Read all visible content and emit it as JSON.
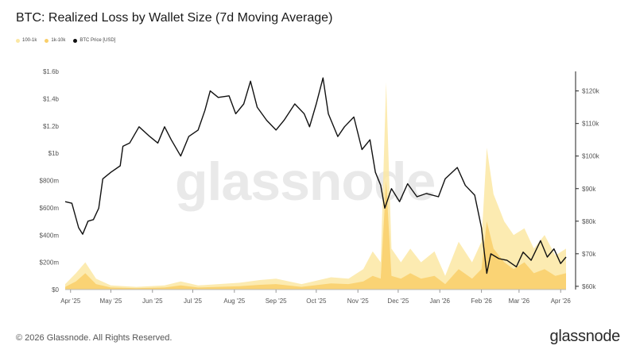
{
  "header": {
    "title": "BTC: Realized Loss by Wallet Size (7d Moving Average)"
  },
  "watermark": "glassnode",
  "footer": {
    "copyright": "© 2026 Glassnode. All Rights Reserved.",
    "logo": "glassnode"
  },
  "colors": {
    "series_100_1k": "#fbe7a3",
    "series_1k_10k": "#f9cf6a",
    "price": "#111111"
  },
  "chart_data": {
    "type": "area",
    "title": "BTC: Realized Loss by Wallet Size (7d Moving Average)",
    "legend": {
      "placement": "top-left",
      "entries": [
        "100-1k",
        "1k-10k",
        "BTC Price [USD]"
      ]
    },
    "x_axis": {
      "ticks": [
        "Apr '25",
        "May '25",
        "Jun '25",
        "Jul '25",
        "Aug '25",
        "Sep '25",
        "Oct '25",
        "Nov '25",
        "Dec '25",
        "Jan '26",
        "Feb '26",
        "Mar '26",
        "Apr '26"
      ],
      "range": [
        "2025-03-28",
        "2026-04-05"
      ]
    },
    "y_left": {
      "ticks": [
        "$0",
        "$200m",
        "$400m",
        "$600m",
        "$800m",
        "$1b",
        "$1.2b",
        "$1.4b",
        "$1.6b"
      ],
      "range": [
        0,
        1600
      ]
    },
    "y_right": {
      "ticks": [
        "$60k",
        "$70k",
        "$80k",
        "$90k",
        "$100k",
        "$110k",
        "$120k"
      ],
      "range": [
        59000,
        126000
      ]
    },
    "grid": false,
    "series": [
      {
        "name": "100-1k",
        "axis": "left",
        "unit": "USD millions",
        "points": [
          [
            "2025-03-28",
            40
          ],
          [
            "2025-04-05",
            120
          ],
          [
            "2025-04-12",
            200
          ],
          [
            "2025-04-20",
            80
          ],
          [
            "2025-05-01",
            30
          ],
          [
            "2025-05-20",
            20
          ],
          [
            "2025-06-10",
            30
          ],
          [
            "2025-06-22",
            60
          ],
          [
            "2025-07-05",
            30
          ],
          [
            "2025-08-05",
            50
          ],
          [
            "2025-08-20",
            70
          ],
          [
            "2025-09-01",
            80
          ],
          [
            "2025-09-20",
            40
          ],
          [
            "2025-10-12",
            90
          ],
          [
            "2025-10-25",
            80
          ],
          [
            "2025-11-05",
            150
          ],
          [
            "2025-11-12",
            280
          ],
          [
            "2025-11-18",
            200
          ],
          [
            "2025-11-22",
            1520
          ],
          [
            "2025-11-26",
            300
          ],
          [
            "2025-12-03",
            200
          ],
          [
            "2025-12-10",
            300
          ],
          [
            "2025-12-18",
            200
          ],
          [
            "2025-12-28",
            280
          ],
          [
            "2026-01-05",
            100
          ],
          [
            "2026-01-15",
            350
          ],
          [
            "2026-01-25",
            200
          ],
          [
            "2026-02-01",
            350
          ],
          [
            "2026-02-05",
            1040
          ],
          [
            "2026-02-10",
            700
          ],
          [
            "2026-02-18",
            500
          ],
          [
            "2026-02-25",
            400
          ],
          [
            "2026-03-05",
            450
          ],
          [
            "2026-03-12",
            300
          ],
          [
            "2026-03-20",
            400
          ],
          [
            "2026-03-28",
            250
          ],
          [
            "2026-04-05",
            300
          ]
        ]
      },
      {
        "name": "1k-10k",
        "axis": "left",
        "unit": "USD millions",
        "points": [
          [
            "2025-03-28",
            20
          ],
          [
            "2025-04-05",
            60
          ],
          [
            "2025-04-12",
            120
          ],
          [
            "2025-04-20",
            40
          ],
          [
            "2025-05-01",
            15
          ],
          [
            "2025-05-20",
            10
          ],
          [
            "2025-06-10",
            15
          ],
          [
            "2025-06-22",
            30
          ],
          [
            "2025-07-05",
            15
          ],
          [
            "2025-08-05",
            25
          ],
          [
            "2025-08-20",
            35
          ],
          [
            "2025-09-01",
            40
          ],
          [
            "2025-09-20",
            20
          ],
          [
            "2025-10-12",
            45
          ],
          [
            "2025-10-25",
            40
          ],
          [
            "2025-11-05",
            60
          ],
          [
            "2025-11-12",
            100
          ],
          [
            "2025-11-18",
            80
          ],
          [
            "2025-11-22",
            800
          ],
          [
            "2025-11-26",
            100
          ],
          [
            "2025-12-03",
            80
          ],
          [
            "2025-12-10",
            120
          ],
          [
            "2025-12-18",
            80
          ],
          [
            "2025-12-28",
            100
          ],
          [
            "2026-01-05",
            40
          ],
          [
            "2026-01-15",
            150
          ],
          [
            "2026-01-25",
            80
          ],
          [
            "2026-02-01",
            150
          ],
          [
            "2026-02-05",
            500
          ],
          [
            "2026-02-10",
            300
          ],
          [
            "2026-02-18",
            200
          ],
          [
            "2026-02-25",
            150
          ],
          [
            "2026-03-05",
            200
          ],
          [
            "2026-03-12",
            120
          ],
          [
            "2026-03-20",
            150
          ],
          [
            "2026-03-28",
            100
          ],
          [
            "2026-04-05",
            120
          ]
        ]
      },
      {
        "name": "BTC Price [USD]",
        "axis": "right",
        "unit": "USD",
        "points": [
          [
            "2025-03-28",
            86000
          ],
          [
            "2025-04-02",
            85500
          ],
          [
            "2025-04-07",
            78000
          ],
          [
            "2025-04-10",
            76000
          ],
          [
            "2025-04-14",
            80000
          ],
          [
            "2025-04-18",
            80500
          ],
          [
            "2025-04-22",
            84000
          ],
          [
            "2025-04-25",
            93000
          ],
          [
            "2025-05-01",
            95000
          ],
          [
            "2025-05-08",
            97000
          ],
          [
            "2025-05-10",
            103000
          ],
          [
            "2025-05-15",
            104000
          ],
          [
            "2025-05-22",
            109000
          ],
          [
            "2025-05-30",
            106000
          ],
          [
            "2025-06-05",
            104000
          ],
          [
            "2025-06-10",
            109000
          ],
          [
            "2025-06-15",
            105000
          ],
          [
            "2025-06-22",
            100000
          ],
          [
            "2025-06-28",
            106000
          ],
          [
            "2025-07-05",
            108000
          ],
          [
            "2025-07-10",
            114000
          ],
          [
            "2025-07-14",
            120000
          ],
          [
            "2025-07-20",
            118000
          ],
          [
            "2025-07-28",
            118500
          ],
          [
            "2025-08-02",
            113000
          ],
          [
            "2025-08-08",
            116000
          ],
          [
            "2025-08-13",
            123000
          ],
          [
            "2025-08-18",
            115000
          ],
          [
            "2025-08-25",
            111000
          ],
          [
            "2025-09-01",
            108000
          ],
          [
            "2025-09-07",
            111000
          ],
          [
            "2025-09-15",
            116000
          ],
          [
            "2025-09-22",
            113000
          ],
          [
            "2025-09-26",
            109000
          ],
          [
            "2025-10-01",
            116000
          ],
          [
            "2025-10-06",
            124000
          ],
          [
            "2025-10-10",
            113000
          ],
          [
            "2025-10-17",
            106000
          ],
          [
            "2025-10-22",
            109000
          ],
          [
            "2025-10-29",
            112000
          ],
          [
            "2025-11-04",
            102000
          ],
          [
            "2025-11-10",
            105000
          ],
          [
            "2025-11-14",
            95000
          ],
          [
            "2025-11-18",
            91000
          ],
          [
            "2025-11-21",
            84000
          ],
          [
            "2025-11-26",
            90000
          ],
          [
            "2025-12-02",
            86000
          ],
          [
            "2025-12-08",
            91500
          ],
          [
            "2025-12-15",
            87500
          ],
          [
            "2025-12-22",
            88500
          ],
          [
            "2025-12-31",
            87500
          ],
          [
            "2026-01-05",
            93000
          ],
          [
            "2026-01-14",
            96500
          ],
          [
            "2026-01-20",
            91000
          ],
          [
            "2026-01-27",
            88000
          ],
          [
            "2026-02-01",
            78000
          ],
          [
            "2026-02-05",
            64000
          ],
          [
            "2026-02-08",
            70000
          ],
          [
            "2026-02-14",
            68500
          ],
          [
            "2026-02-20",
            68000
          ],
          [
            "2026-02-27",
            66000
          ],
          [
            "2026-03-04",
            70500
          ],
          [
            "2026-03-10",
            68000
          ],
          [
            "2026-03-17",
            74000
          ],
          [
            "2026-03-22",
            69000
          ],
          [
            "2026-03-27",
            71500
          ],
          [
            "2026-04-01",
            67000
          ],
          [
            "2026-04-05",
            69000
          ]
        ]
      }
    ]
  }
}
